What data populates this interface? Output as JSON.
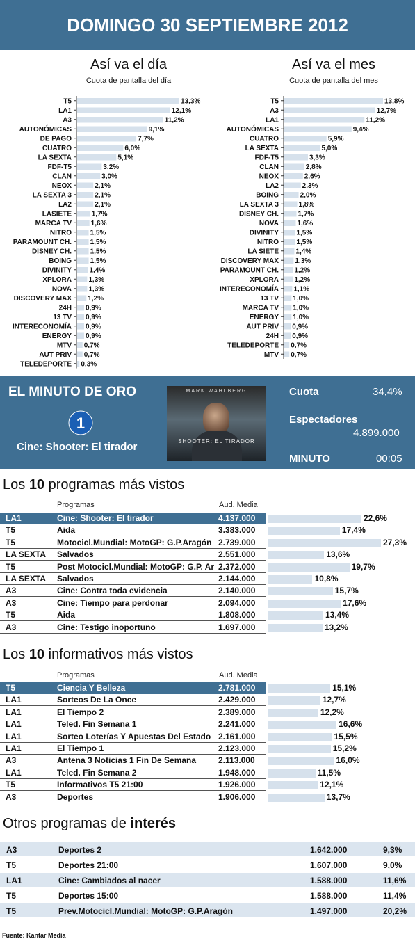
{
  "header": {
    "title": "DOMINGO 30 SEPTIEMBRE 2012"
  },
  "chart_data": [
    {
      "type": "bar",
      "title": "Así va el día",
      "subtitle": "Cuota de pantalla del día",
      "categories": [
        "T5",
        "LA1",
        "A3",
        "AUTONÓMICAS",
        "DE PAGO",
        "CUATRO",
        "LA SEXTA",
        "FDF-T5",
        "CLAN",
        "NEOX",
        "LA SEXTA 3",
        "LA2",
        "LASIETE",
        "MARCA TV",
        "NITRO",
        "PARAMOUNT CH.",
        "DISNEY CH.",
        "BOING",
        "DIVINITY",
        "XPLORA",
        "NOVA",
        "DISCOVERY MAX",
        "24H",
        "13 TV",
        "INTERECONOMÍA",
        "ENERGY",
        "MTV",
        "AUT PRIV",
        "TELEDEPORTE"
      ],
      "values": [
        13.3,
        12.1,
        11.2,
        9.1,
        7.7,
        6.0,
        5.1,
        3.2,
        3.0,
        2.1,
        2.1,
        2.1,
        1.7,
        1.6,
        1.5,
        1.5,
        1.5,
        1.5,
        1.4,
        1.3,
        1.3,
        1.2,
        0.9,
        0.9,
        0.9,
        0.9,
        0.7,
        0.7,
        0.3
      ],
      "value_labels": [
        "13,3%",
        "12,1%",
        "11,2%",
        "9,1%",
        "7,7%",
        "6,0%",
        "5,1%",
        "3,2%",
        "3,0%",
        "2,1%",
        "2,1%",
        "2,1%",
        "1,7%",
        "1,6%",
        "1,5%",
        "1,5%",
        "1,5%",
        "1,5%",
        "1,4%",
        "1,3%",
        "1,3%",
        "1,2%",
        "0,9%",
        "0,9%",
        "0,9%",
        "0,9%",
        "0,7%",
        "0,7%",
        "0,3%"
      ],
      "bar_color": "#d6e1ec"
    },
    {
      "type": "bar",
      "title": "Así va el mes",
      "subtitle": "Cuota de pantalla del mes",
      "categories": [
        "T5",
        "A3",
        "LA1",
        "AUTONÓMICAS",
        "CUATRO",
        "LA SEXTA",
        "FDF-T5",
        "CLAN",
        "NEOX",
        "LA2",
        "BOING",
        "LA SEXTA 3",
        "DISNEY CH.",
        "NOVA",
        "DIVINITY",
        "NITRO",
        "LA SIETE",
        "DISCOVERY MAX",
        "PARAMOUNT CH.",
        "XPLORA",
        "INTERECONOMÍA",
        "13 TV",
        "MARCA TV",
        "ENERGY",
        "AUT PRIV",
        "24H",
        "TELEDEPORTE",
        "MTV"
      ],
      "values": [
        13.8,
        12.7,
        11.2,
        9.4,
        5.9,
        5.0,
        3.3,
        2.8,
        2.6,
        2.3,
        2.0,
        1.8,
        1.7,
        1.6,
        1.5,
        1.5,
        1.4,
        1.3,
        1.2,
        1.2,
        1.1,
        1.0,
        1.0,
        1.0,
        0.9,
        0.9,
        0.7,
        0.7
      ],
      "value_labels": [
        "13,8%",
        "12,7%",
        "11,2%",
        "9,4%",
        "5,9%",
        "5,0%",
        "3,3%",
        "2,8%",
        "2,6%",
        "2,3%",
        "2,0%",
        "1,8%",
        "1,7%",
        "1,6%",
        "1,5%",
        "1,5%",
        "1,4%",
        "1,3%",
        "1,2%",
        "1,2%",
        "1,1%",
        "1,0%",
        "1,0%",
        "1,0%",
        "0,9%",
        "0,9%",
        "0,7%",
        "0,7%"
      ],
      "bar_color": "#d6e1ec"
    },
    {
      "type": "bar",
      "title": "Los 10 programas más vistos",
      "categories": [
        "Cine: Shooter: El tirador",
        "Aida",
        "Motocicl.Mundial: MotoGP: G.P.Aragón",
        "Salvados",
        "Post Motocicl.Mundial: MotoGP: G.P. Aragón",
        "Salvados",
        "Cine: Contra toda evidencia",
        "Cine: Tiempo para perdonar",
        "Aida",
        "Cine: Testigo inoportuno"
      ],
      "values": [
        22.6,
        17.4,
        27.3,
        13.6,
        19.7,
        10.8,
        15.7,
        17.6,
        13.4,
        13.2
      ]
    },
    {
      "type": "bar",
      "title": "Los 10 informativos más vistos",
      "categories": [
        "Ciencia Y Belleza",
        "Sorteos De La Once",
        "El Tiempo 2",
        "Teled. Fin Semana 1",
        "Sorteo Loterías Y Apuestas Del Estado",
        "El Tiempo 1",
        "Antena 3 Noticias 1 Fin De Semana",
        "Teled. Fin Semana 2",
        "Informativos T5 21:00",
        "Deportes"
      ],
      "values": [
        15.1,
        12.7,
        12.2,
        16.6,
        15.5,
        15.2,
        16.0,
        11.5,
        12.1,
        13.7
      ]
    }
  ],
  "oro": {
    "title": "EL MINUTO DE ORO",
    "channel_logo": "la1-logo-icon",
    "channel_logo_text": "1",
    "program": "Cine: Shooter: El tirador",
    "poster_actor": "MARK WAHLBERG",
    "poster_title": "SHOOTER: EL TIRADOR",
    "cuota_label": "Cuota",
    "cuota_value": "34,4%",
    "espect_label": "Espectadores",
    "espect_value": "4.899.000",
    "minuto_label": "MINUTO",
    "minuto_value": "00:05"
  },
  "top_programs": {
    "title_pre": "Los ",
    "title_bold": "10",
    "title_post": " programas más vistos",
    "col_prog": "Programas",
    "col_aud": "Aud. Media",
    "rows": [
      {
        "ch": "LA1",
        "prog": "Cine: Shooter: El tirador",
        "aud": "4.137.000",
        "share": "22,6%",
        "v": 22.6
      },
      {
        "ch": "T5",
        "prog": "Aida",
        "aud": "3.383.000",
        "share": "17,4%",
        "v": 17.4
      },
      {
        "ch": "T5",
        "prog": "Motocicl.Mundial: MotoGP: G.P.Aragón",
        "aud": "2.739.000",
        "share": "27,3%",
        "v": 27.3
      },
      {
        "ch": "LA SEXTA",
        "prog": "Salvados",
        "aud": "2.551.000",
        "share": "13,6%",
        "v": 13.6
      },
      {
        "ch": "T5",
        "prog": "Post Motocicl.Mundial: MotoGP: G.P. Aragón",
        "aud": "2.372.000",
        "share": "19,7%",
        "v": 19.7
      },
      {
        "ch": "LA SEXTA",
        "prog": "Salvados",
        "aud": "2.144.000",
        "share": "10,8%",
        "v": 10.8
      },
      {
        "ch": "A3",
        "prog": "Cine: Contra toda evidencia",
        "aud": "2.140.000",
        "share": "15,7%",
        "v": 15.7
      },
      {
        "ch": "A3",
        "prog": "Cine: Tiempo para perdonar",
        "aud": "2.094.000",
        "share": "17,6%",
        "v": 17.6
      },
      {
        "ch": "T5",
        "prog": "Aida",
        "aud": "1.808.000",
        "share": "13,4%",
        "v": 13.4
      },
      {
        "ch": "A3",
        "prog": "Cine: Testigo inoportuno",
        "aud": "1.697.000",
        "share": "13,2%",
        "v": 13.2
      }
    ]
  },
  "top_news": {
    "title_pre": "Los ",
    "title_bold": "10",
    "title_post": " informativos más vistos",
    "col_prog": "Programas",
    "col_aud": "Aud. Media",
    "rows": [
      {
        "ch": "T5",
        "prog": "Ciencia Y Belleza",
        "aud": "2.781.000",
        "share": "15,1%",
        "v": 15.1
      },
      {
        "ch": "LA1",
        "prog": "Sorteos De La Once",
        "aud": "2.429.000",
        "share": "12,7%",
        "v": 12.7
      },
      {
        "ch": "LA1",
        "prog": "El Tiempo 2",
        "aud": "2.389.000",
        "share": "12,2%",
        "v": 12.2
      },
      {
        "ch": "LA1",
        "prog": "Teled. Fin Semana 1",
        "aud": "2.241.000",
        "share": "16,6%",
        "v": 16.6
      },
      {
        "ch": "LA1",
        "prog": "Sorteo Loterías Y Apuestas Del Estado",
        "aud": "2.161.000",
        "share": "15,5%",
        "v": 15.5
      },
      {
        "ch": "LA1",
        "prog": "El Tiempo 1",
        "aud": "2.123.000",
        "share": "15,2%",
        "v": 15.2
      },
      {
        "ch": "A3",
        "prog": "Antena 3 Noticias 1 Fin De Semana",
        "aud": "2.113.000",
        "share": "16,0%",
        "v": 16.0
      },
      {
        "ch": "LA1",
        "prog": "Teled. Fin Semana 2",
        "aud": "1.948.000",
        "share": "11,5%",
        "v": 11.5
      },
      {
        "ch": "T5",
        "prog": "Informativos T5 21:00",
        "aud": "1.926.000",
        "share": "12,1%",
        "v": 12.1
      },
      {
        "ch": "A3",
        "prog": "Deportes",
        "aud": "1.906.000",
        "share": "13,7%",
        "v": 13.7
      }
    ]
  },
  "others": {
    "title_pre": "Otros programas de ",
    "title_bold": "interés",
    "rows": [
      {
        "ch": "A3",
        "prog": "Deportes 2",
        "aud": "1.642.000",
        "share": "9,3%"
      },
      {
        "ch": "T5",
        "prog": "Deportes 21:00",
        "aud": "1.607.000",
        "share": "9,0%"
      },
      {
        "ch": "LA1",
        "prog": "Cine: Cambiados al nacer",
        "aud": "1.588.000",
        "share": "11,6%"
      },
      {
        "ch": "T5",
        "prog": "Deportes 15:00",
        "aud": "1.588.000",
        "share": "11,4%"
      },
      {
        "ch": "T5",
        "prog": "Prev.Motocicl.Mundial: MotoGP: G.P.Aragón",
        "aud": "1.497.000",
        "share": "20,2%"
      }
    ]
  },
  "footer": {
    "source": "Fuente:  Kantar Media"
  }
}
